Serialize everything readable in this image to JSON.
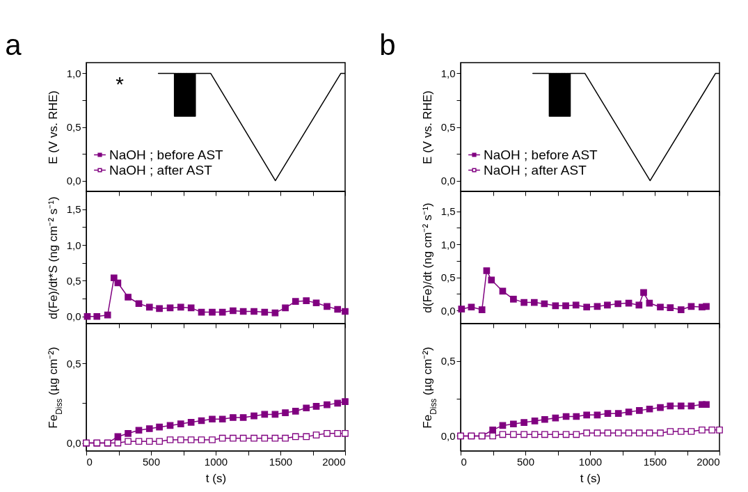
{
  "chart_data": [
    {
      "type": "line",
      "title": "a",
      "ylabel": "E (V vs. RHE)",
      "annotations": [
        "*"
      ],
      "tick_labels": "y",
      "xlim": [
        0,
        2000
      ],
      "xticks": [
        0,
        {
          "value": 250,
          "label": null
        },
        500,
        {
          "value": 750,
          "label": null
        },
        1000,
        {
          "value": 1250,
          "label": null
        },
        1500,
        {
          "value": 1750,
          "label": null
        },
        2000
      ],
      "ylim": [
        -0.1,
        1.1
      ],
      "yticks": [
        {
          "value": 0,
          "label": "0,0"
        },
        {
          "value": 0.25,
          "label": null
        },
        {
          "value": 0.5,
          "label": "0,5"
        },
        {
          "value": 0.75,
          "label": null
        },
        {
          "value": 1,
          "label": "1,0"
        }
      ],
      "series": [
        {
          "color": "#000000",
          "x": [
            557,
            681,
            681,
            687,
            687,
            693,
            693,
            699,
            699,
            705,
            705,
            711,
            711,
            717,
            717,
            723,
            723,
            729,
            729,
            735,
            735,
            741,
            741,
            747,
            747,
            753,
            753,
            759,
            759,
            765,
            765,
            771,
            771,
            777,
            777,
            783,
            783,
            789,
            789,
            795,
            795,
            801,
            801,
            807,
            807,
            813,
            813,
            819,
            819,
            825,
            825,
            831,
            831,
            837,
            837,
            843,
            843,
            961,
            1461,
            1967,
            2000
          ],
          "values": [
            1,
            1,
            0.6,
            0.6,
            1,
            1,
            0.6,
            0.6,
            1,
            1,
            0.6,
            0.6,
            1,
            1,
            0.6,
            0.6,
            1,
            1,
            0.6,
            0.6,
            1,
            1,
            0.6,
            0.6,
            1,
            1,
            0.6,
            0.6,
            1,
            1,
            0.6,
            0.6,
            1,
            1,
            0.6,
            0.6,
            1,
            1,
            0.6,
            0.6,
            1,
            1,
            0.6,
            0.6,
            1,
            1,
            0.6,
            0.6,
            1,
            1,
            0.6,
            0.6,
            1,
            1,
            0.6,
            0.6,
            1,
            1,
            0,
            1,
            1
          ]
        }
      ]
    },
    {
      "type": "line",
      "ylabel": "d(Fe)/dt*S (ng cm⁻² s⁻¹)",
      "marker": "square",
      "tick_labels": "y",
      "xlim": [
        0,
        2000
      ],
      "xticks": [
        0,
        {
          "value": 250,
          "label": null
        },
        500,
        {
          "value": 750,
          "label": null
        },
        1000,
        {
          "value": 1250,
          "label": null
        },
        1500,
        {
          "value": 1750,
          "label": null
        },
        2000
      ],
      "ylim": [
        -0.1,
        1.75
      ],
      "yticks": [
        {
          "value": 0,
          "label": "0,0"
        },
        {
          "value": 0.25,
          "label": null
        },
        {
          "value": 0.5,
          "label": "0,5"
        },
        {
          "value": 0.75,
          "label": null
        },
        {
          "value": 1,
          "label": "1,0"
        },
        {
          "value": 1.25,
          "label": null
        },
        {
          "value": 1.5,
          "label": "1,5"
        }
      ],
      "series": [
        {
          "name": "NaOH ; before AST",
          "color": "#800080",
          "x": [
            8,
            82,
            165,
            214,
            244,
            323,
            406,
            488,
            565,
            648,
            730,
            810,
            890,
            973,
            1052,
            1134,
            1213,
            1296,
            1378,
            1459,
            1538,
            1617,
            1700,
            1777,
            1860,
            1942,
            2000
          ],
          "values": [
            0,
            0,
            0.02,
            0.54,
            0.47,
            0.27,
            0.18,
            0.13,
            0.11,
            0.12,
            0.13,
            0.12,
            0.06,
            0.06,
            0.06,
            0.08,
            0.07,
            0.07,
            0.06,
            0.05,
            0.12,
            0.21,
            0.22,
            0.19,
            0.14,
            0.1,
            0.07
          ]
        }
      ]
    },
    {
      "type": "line",
      "xlabel": "t (s)",
      "ylabel": "Fe$_{Diss}$ (µg cm⁻²)",
      "marker": "square",
      "legend": "top",
      "xlim": [
        0,
        2000
      ],
      "xticks": [
        0,
        {
          "value": 250,
          "label": null
        },
        500,
        {
          "value": 750,
          "label": null
        },
        1000,
        {
          "value": 1250,
          "label": null
        },
        1500,
        {
          "value": 1750,
          "label": null
        },
        2000
      ],
      "ylim": [
        -0.05,
        0.75
      ],
      "yticks": [
        {
          "value": 0,
          "label": "0,0"
        },
        {
          "value": 0.25,
          "label": null
        },
        {
          "value": 0.5,
          "label": "0,5"
        }
      ],
      "series": [
        {
          "name": "NaOH ; before AST",
          "color": "#800080",
          "x": [
            0,
            82,
            165,
            244,
            323,
            406,
            488,
            565,
            648,
            730,
            810,
            890,
            973,
            1052,
            1134,
            1213,
            1296,
            1378,
            1459,
            1538,
            1617,
            1700,
            1777,
            1860,
            1942,
            2000
          ],
          "values": [
            0,
            0,
            0,
            0.04,
            0.06,
            0.08,
            0.09,
            0.1,
            0.11,
            0.12,
            0.13,
            0.14,
            0.15,
            0.15,
            0.16,
            0.16,
            0.17,
            0.18,
            0.18,
            0.19,
            0.2,
            0.22,
            0.23,
            0.24,
            0.25,
            0.26
          ]
        },
        {
          "name": "NaOH ; after AST",
          "color": "#800080",
          "x": [
            0,
            82,
            165,
            244,
            323,
            406,
            488,
            565,
            648,
            730,
            810,
            890,
            973,
            1052,
            1134,
            1213,
            1296,
            1378,
            1459,
            1538,
            1617,
            1700,
            1777,
            1860,
            1942,
            2000
          ],
          "values": [
            0,
            0,
            0,
            0,
            0.01,
            0.01,
            0.01,
            0.01,
            0.02,
            0.02,
            0.02,
            0.02,
            0.02,
            0.03,
            0.03,
            0.03,
            0.03,
            0.03,
            0.03,
            0.03,
            0.04,
            0.04,
            0.05,
            0.06,
            0.06,
            0.06
          ]
        }
      ]
    },
    {
      "type": "line",
      "title": "b",
      "ylabel": "E (V vs. RHE)",
      "tick_labels": "y",
      "xlim": [
        0,
        2000
      ],
      "xticks": [
        0,
        {
          "value": 250,
          "label": null
        },
        500,
        {
          "value": 750,
          "label": null
        },
        1000,
        {
          "value": 1250,
          "label": null
        },
        1500,
        {
          "value": 1750,
          "label": null
        },
        2000
      ],
      "ylim": [
        -0.1,
        1.1
      ],
      "yticks": [
        {
          "value": 0,
          "label": "0,0"
        },
        {
          "value": 0.25,
          "label": null
        },
        {
          "value": 0.5,
          "label": "0,5"
        },
        {
          "value": 0.75,
          "label": null
        },
        {
          "value": 1,
          "label": "1,0"
        }
      ],
      "series": [
        {
          "color": "#000000",
          "x": [
            558,
            685,
            685,
            691,
            691,
            697,
            697,
            703,
            703,
            709,
            709,
            715,
            715,
            721,
            721,
            727,
            727,
            733,
            733,
            739,
            739,
            745,
            745,
            751,
            751,
            757,
            757,
            763,
            763,
            769,
            769,
            775,
            775,
            781,
            781,
            787,
            787,
            793,
            793,
            799,
            799,
            805,
            805,
            811,
            811,
            817,
            817,
            823,
            823,
            829,
            829,
            835,
            835,
            841,
            841,
            847,
            847,
            960,
            1464,
            1970,
            2000
          ],
          "values": [
            1,
            1,
            0.6,
            0.6,
            1,
            1,
            0.6,
            0.6,
            1,
            1,
            0.6,
            0.6,
            1,
            1,
            0.6,
            0.6,
            1,
            1,
            0.6,
            0.6,
            1,
            1,
            0.6,
            0.6,
            1,
            1,
            0.6,
            0.6,
            1,
            1,
            0.6,
            0.6,
            1,
            1,
            0.6,
            0.6,
            1,
            1,
            0.6,
            0.6,
            1,
            1,
            0.6,
            0.6,
            1,
            1,
            0.6,
            0.6,
            1,
            1,
            0.6,
            0.6,
            1,
            1,
            0.6,
            0.6,
            1,
            1,
            0,
            1,
            1
          ]
        }
      ]
    },
    {
      "type": "line",
      "ylabel": "d(Fe)/dt (ng cm⁻² s⁻¹)",
      "marker": "square",
      "tick_labels": "y",
      "xlim": [
        0,
        2000
      ],
      "xticks": [
        0,
        {
          "value": 250,
          "label": null
        },
        500,
        {
          "value": 750,
          "label": null
        },
        1000,
        {
          "value": 1250,
          "label": null
        },
        1500,
        {
          "value": 1750,
          "label": null
        },
        2000
      ],
      "ylim": [
        -0.2,
        1.8
      ],
      "yticks": [
        {
          "value": 0,
          "label": "0,0"
        },
        {
          "value": 0.25,
          "label": null
        },
        {
          "value": 0.5,
          "label": "0,5"
        },
        {
          "value": 0.75,
          "label": null
        },
        {
          "value": 1,
          "label": "1,0"
        },
        {
          "value": 1.25,
          "label": null
        },
        {
          "value": 1.5,
          "label": "1,5"
        }
      ],
      "series": [
        {
          "name": "NaOH ; before AST",
          "color": "#800080",
          "x": [
            7,
            83,
            165,
            201,
            238,
            325,
            408,
            490,
            569,
            647,
            733,
            812,
            891,
            974,
            1056,
            1134,
            1216,
            1299,
            1378,
            1414,
            1459,
            1543,
            1620,
            1703,
            1782,
            1865,
            1898
          ],
          "values": [
            0.02,
            0.05,
            0.01,
            0.6,
            0.46,
            0.29,
            0.17,
            0.12,
            0.12,
            0.1,
            0.07,
            0.07,
            0.08,
            0.05,
            0.06,
            0.08,
            0.1,
            0.11,
            0.08,
            0.27,
            0.11,
            0.05,
            0.04,
            0.01,
            0.06,
            0.05,
            0.06
          ]
        }
      ]
    },
    {
      "type": "line",
      "xlabel": "t (s)",
      "ylabel": "Fe$_{Diss}$ (µg cm⁻²)",
      "marker": "square",
      "legend": "top",
      "xlim": [
        0,
        2000
      ],
      "xticks": [
        0,
        {
          "value": 250,
          "label": null
        },
        500,
        {
          "value": 750,
          "label": null
        },
        1000,
        {
          "value": 1250,
          "label": null
        },
        1500,
        {
          "value": 1750,
          "label": null
        },
        2000
      ],
      "ylim": [
        -0.1,
        0.75
      ],
      "yticks": [
        {
          "value": 0,
          "label": "0,0"
        },
        {
          "value": 0.25,
          "label": null
        },
        {
          "value": 0.5,
          "label": "0,5"
        }
      ],
      "series": [
        {
          "name": "NaOH ; before AST",
          "color": "#800080",
          "x": [
            0,
            83,
            165,
            248,
            325,
            408,
            490,
            573,
            650,
            733,
            815,
            894,
            974,
            1056,
            1137,
            1219,
            1299,
            1381,
            1460,
            1543,
            1620,
            1703,
            1782,
            1865,
            1898
          ],
          "values": [
            0,
            0,
            0,
            0.04,
            0.07,
            0.08,
            0.09,
            0.1,
            0.11,
            0.12,
            0.13,
            0.13,
            0.14,
            0.14,
            0.15,
            0.15,
            0.16,
            0.17,
            0.18,
            0.19,
            0.2,
            0.2,
            0.2,
            0.21,
            0.21
          ]
        },
        {
          "name": "NaOH ; after AST",
          "color": "#800080",
          "x": [
            0,
            83,
            165,
            248,
            325,
            408,
            490,
            573,
            650,
            733,
            815,
            894,
            974,
            1056,
            1137,
            1219,
            1299,
            1381,
            1460,
            1543,
            1620,
            1703,
            1782,
            1865,
            1942,
            2000
          ],
          "values": [
            0,
            0,
            0,
            0,
            0.01,
            0.01,
            0.01,
            0.01,
            0.01,
            0.01,
            0.01,
            0.01,
            0.02,
            0.02,
            0.02,
            0.02,
            0.02,
            0.02,
            0.02,
            0.02,
            0.03,
            0.03,
            0.03,
            0.04,
            0.04,
            0.04
          ]
        }
      ]
    }
  ]
}
